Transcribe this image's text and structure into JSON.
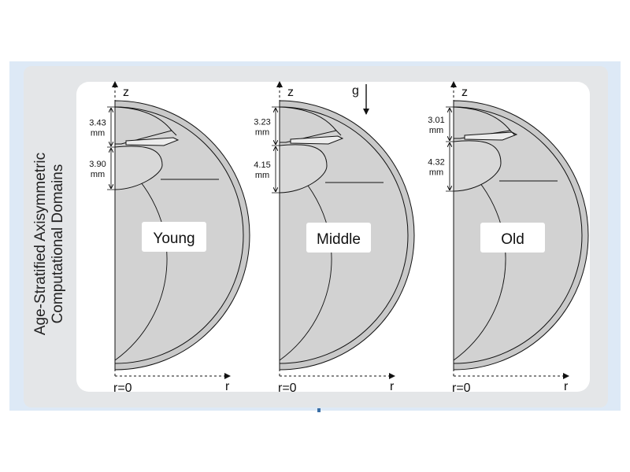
{
  "title": {
    "line1": "Age-Stratified Axisymmetric",
    "line2": "Computational Domains"
  },
  "gravity_label": "g",
  "axis": {
    "z_label": "z",
    "r_label": "r",
    "origin_label": "r=0"
  },
  "unit": "mm",
  "panels": [
    {
      "name": "Young",
      "upper_dimension": "3.43",
      "lower_dimension": "3.90"
    },
    {
      "name": "Middle",
      "upper_dimension": "3.23",
      "lower_dimension": "4.15"
    },
    {
      "name": "Old",
      "upper_dimension": "3.01",
      "lower_dimension": "4.32"
    }
  ],
  "colors": {
    "tissue_fill": "#d2d2d2",
    "outline": "#111111",
    "panel_background": "#ffffff",
    "frame_gray": "#e4e6e8",
    "frame_blue": "#dde9f6"
  }
}
